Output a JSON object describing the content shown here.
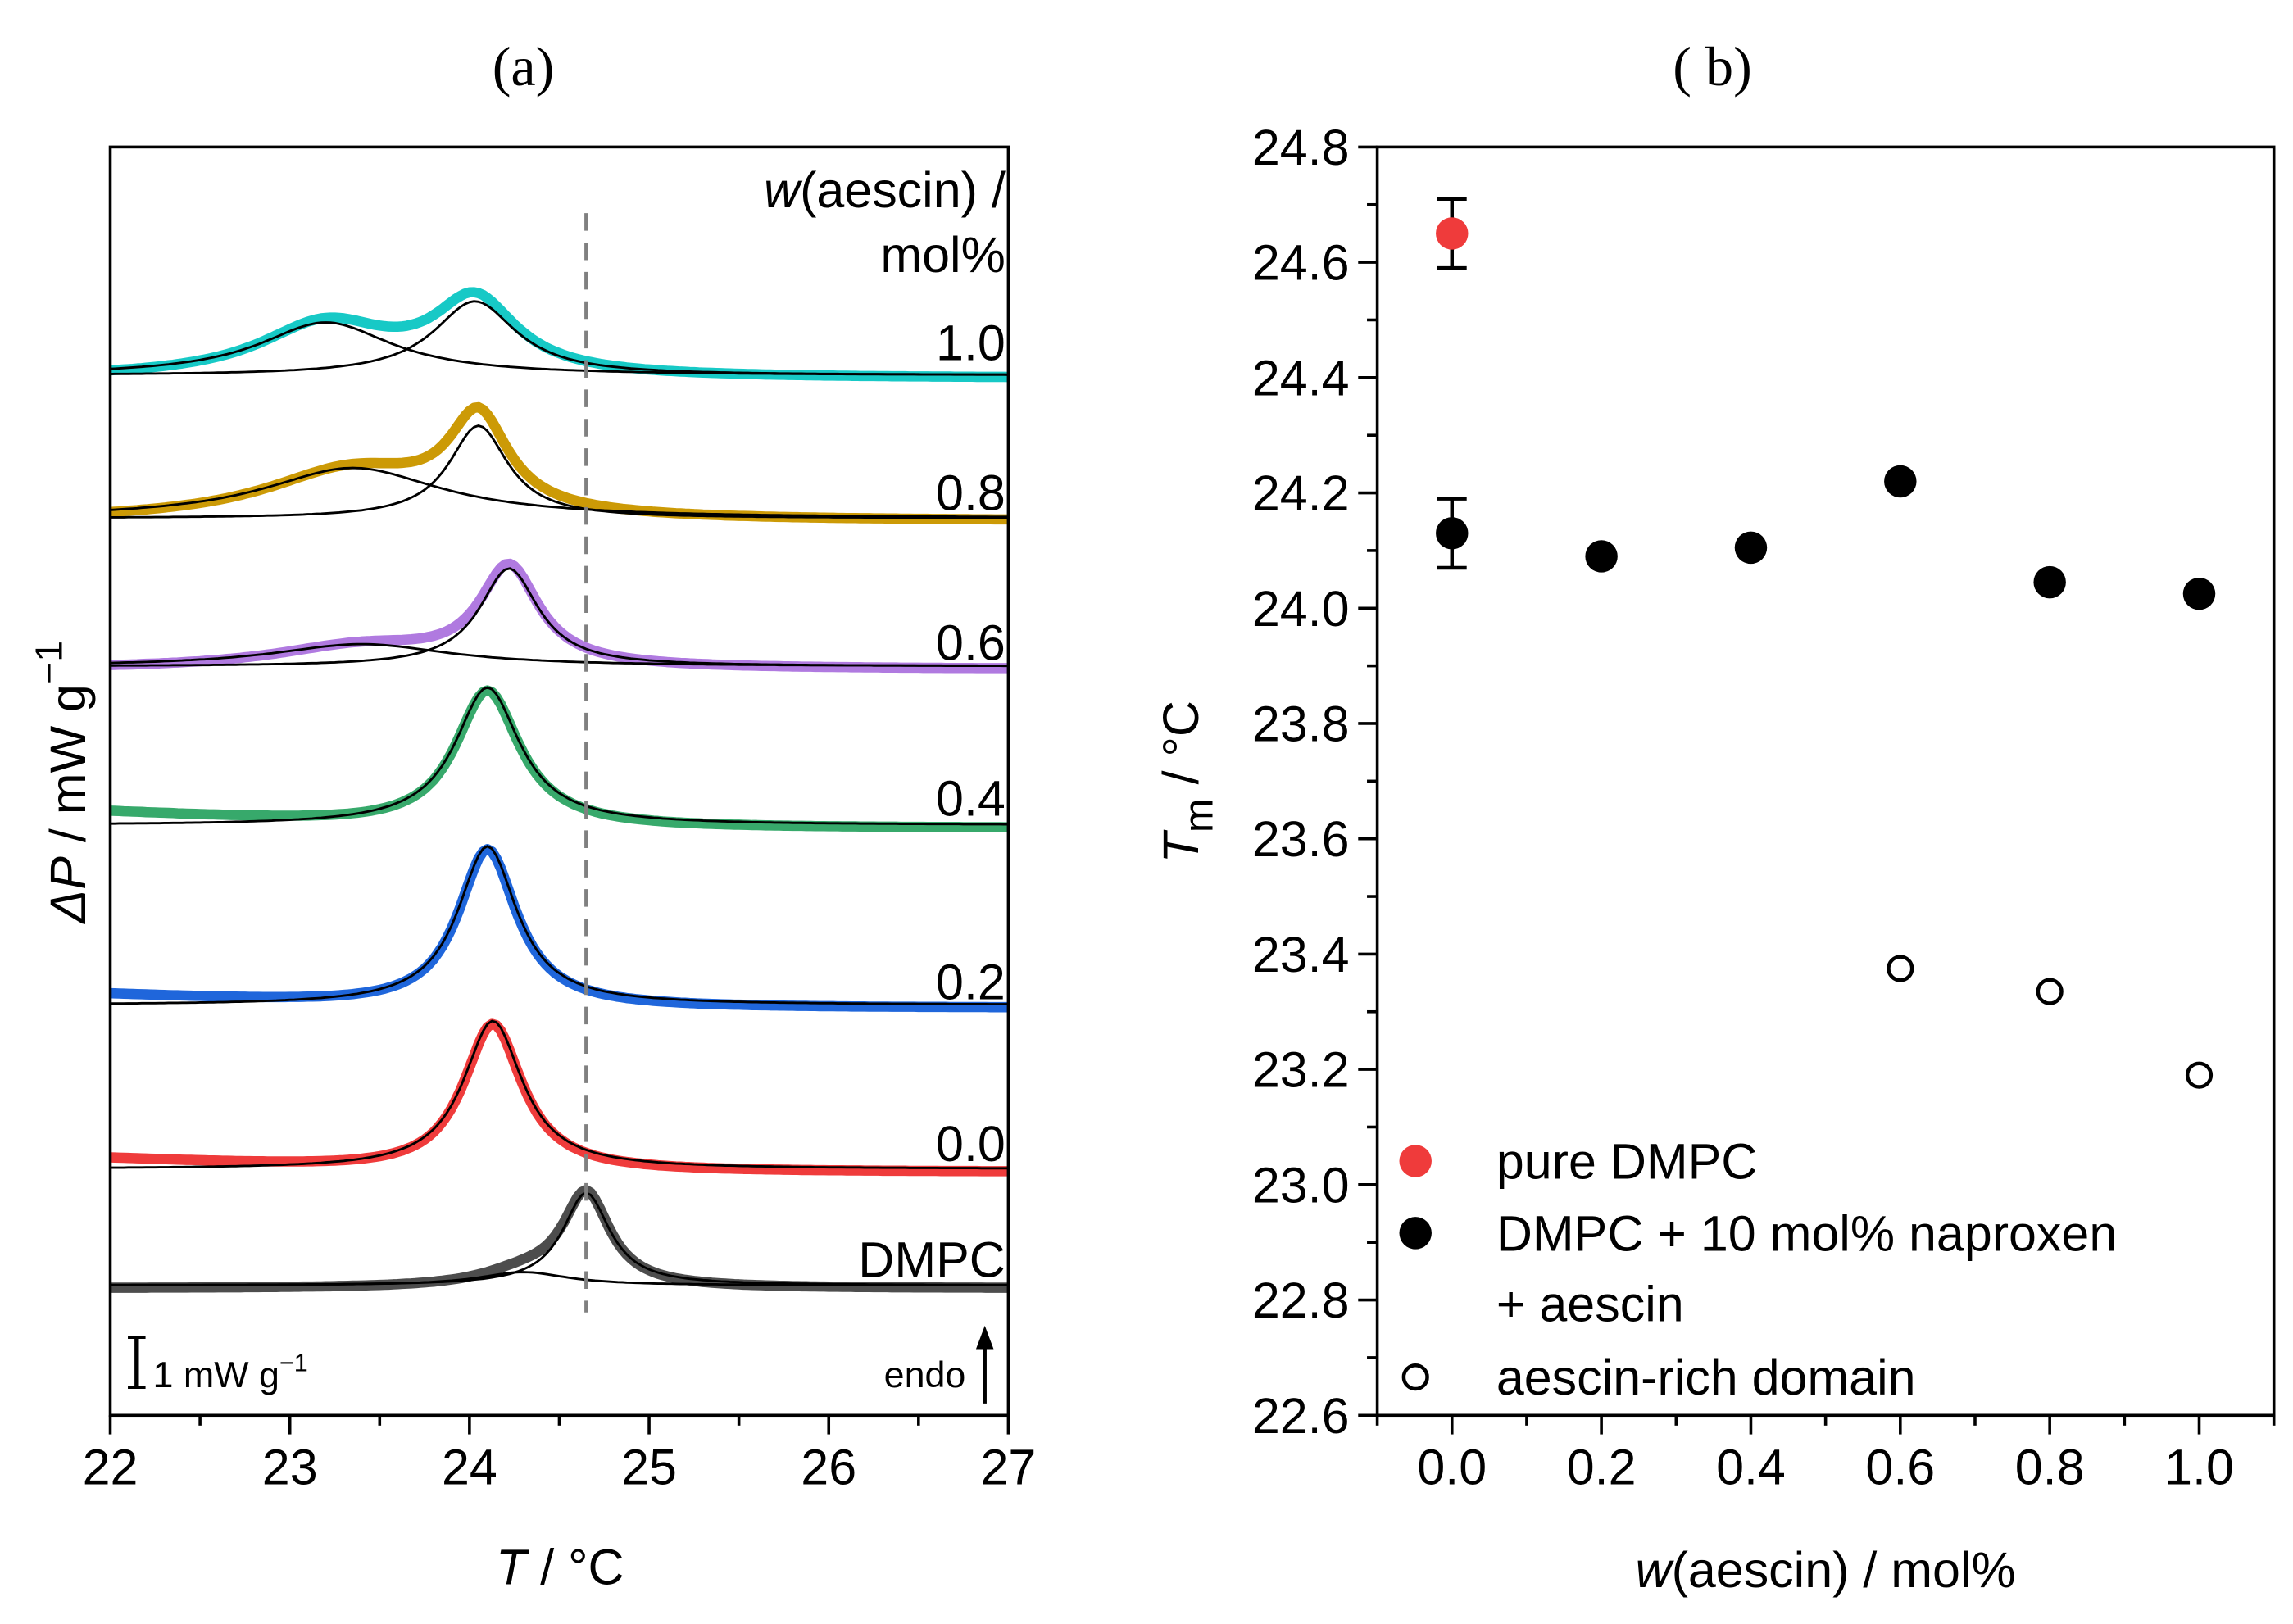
{
  "chart_data": [
    {
      "type": "line",
      "title": "(a)",
      "xlabel": "T / °C",
      "xlabel_italic": "T",
      "xlabel_rest": " / °C",
      "ylabel": "ΔP / mW g−1",
      "ylabel_italic": "ΔP",
      "ylabel_rest": " / mW g",
      "ylabel_sup": "−1",
      "xlim": [
        22,
        27
      ],
      "xticks": [
        "22",
        "23",
        "24",
        "25",
        "26",
        "27"
      ],
      "legend_title_italic": "w",
      "legend_title_rest": "(aescin) /",
      "legend_title_line2": "mol%",
      "scale_bar_label": "1 mW g",
      "scale_bar_sup": "−1",
      "scale_bar_value_mW_per_g": 1,
      "endo_label": "endo",
      "reference_line_T": 24.65,
      "series": [
        {
          "name": "DMPC",
          "color": "#4d4d4d",
          "offset": 2.4,
          "peaks": [
            [
              24.65,
              1.75,
              0.16
            ],
            [
              24.3,
              0.25,
              0.3
            ]
          ]
        },
        {
          "name": "0.0",
          "color": "#ef3b3b",
          "offset": 4.6,
          "peaks": [
            [
              24.13,
              2.8,
              0.2
            ]
          ],
          "left_rise": 0.25
        },
        {
          "name": "0.2",
          "color": "#1f66db",
          "offset": 7.7,
          "peaks": [
            [
              24.1,
              3.0,
              0.2
            ]
          ],
          "left_rise": 0.25
        },
        {
          "name": "0.4",
          "color": "#37a96b",
          "offset": 11.1,
          "peaks": [
            [
              24.1,
              2.6,
              0.22
            ]
          ],
          "left_rise": 0.3
        },
        {
          "name": "0.6",
          "color": "#b07ae0",
          "offset": 14.1,
          "peaks": [
            [
              24.22,
              1.85,
              0.2
            ],
            [
              23.4,
              0.42,
              0.6
            ]
          ]
        },
        {
          "name": "0.8",
          "color": "#cc9a06",
          "offset": 16.9,
          "peaks": [
            [
              24.05,
              1.75,
              0.2
            ],
            [
              23.35,
              0.95,
              0.6
            ]
          ]
        },
        {
          "name": "1.0",
          "color": "#17c9c6",
          "offset": 19.6,
          "peaks": [
            [
              24.03,
              1.4,
              0.28
            ],
            [
              23.2,
              1.0,
              0.45
            ]
          ]
        }
      ]
    },
    {
      "type": "scatter",
      "title": "( b)",
      "xlabel_italic": "w",
      "xlabel_rest": "(aescin) / mol%",
      "ylabel_italic": "T",
      "ylabel_sub": "m",
      "ylabel_rest": " / °C",
      "xlim": [
        -0.1,
        1.1
      ],
      "ylim": [
        22.6,
        24.8
      ],
      "xticks": [
        "0.0",
        "0.2",
        "0.4",
        "0.6",
        "0.8",
        "1.0"
      ],
      "yticks": [
        "22.6",
        "22.8",
        "23.0",
        "23.2",
        "23.4",
        "23.6",
        "23.8",
        "24.0",
        "24.2",
        "24.4",
        "24.6",
        "24.8"
      ],
      "legend_placement": "bottom-left",
      "series": [
        {
          "name": "pure DMPC",
          "marker": "filled",
          "color": "#ef3b3b",
          "x": [
            0.0
          ],
          "y": [
            24.65
          ],
          "err": [
            0.06
          ]
        },
        {
          "name": "DMPC + 10 mol% naproxen",
          "name_line2": "+ aescin",
          "marker": "filled",
          "color": "#000000",
          "x": [
            0.0,
            0.2,
            0.4,
            0.6,
            0.8,
            1.0
          ],
          "y": [
            24.13,
            24.09,
            24.105,
            24.22,
            24.045,
            24.025
          ],
          "err": [
            0.06,
            0,
            0,
            0,
            0,
            0
          ]
        },
        {
          "name": "aescin-rich domain",
          "marker": "open",
          "color": "#000000",
          "x": [
            0.6,
            0.8,
            1.0
          ],
          "y": [
            23.375,
            23.335,
            23.19
          ],
          "err": [
            0,
            0,
            0
          ]
        }
      ]
    }
  ]
}
